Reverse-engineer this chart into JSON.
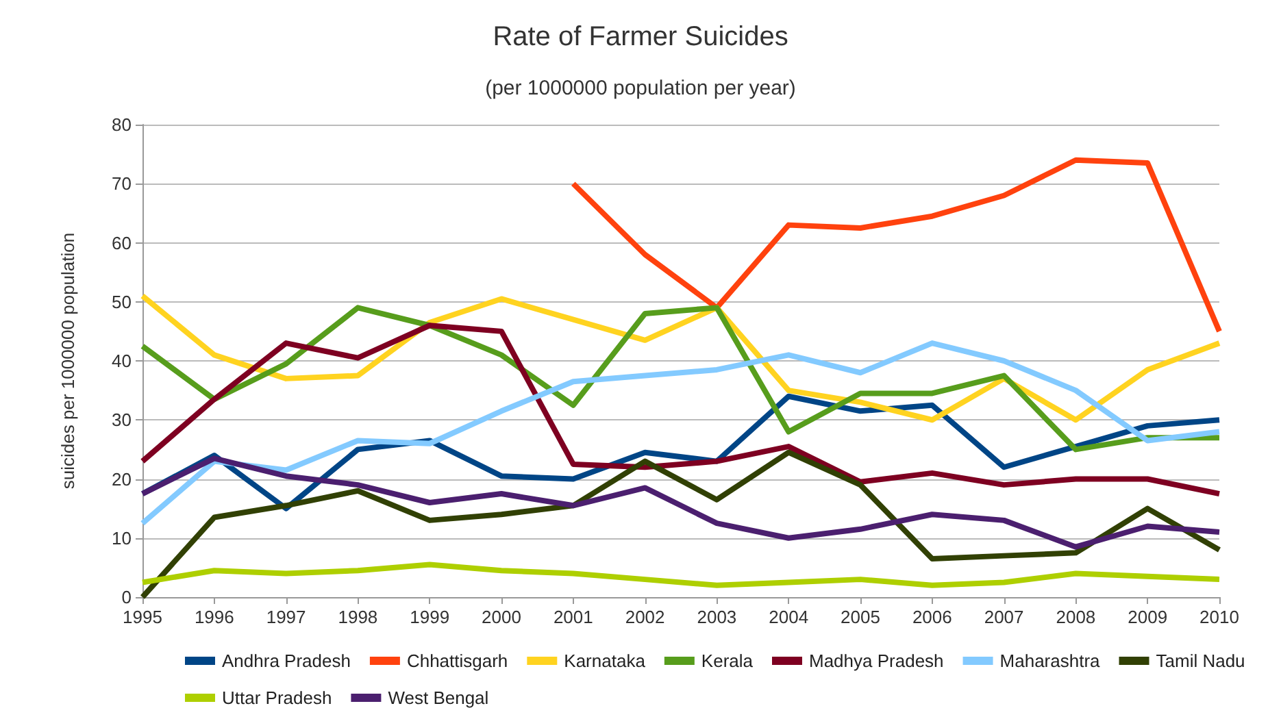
{
  "chart_data": {
    "type": "line",
    "title": "Rate of Farmer Suicides",
    "subtitle": "(per 1000000 population per year)",
    "ylabel": "suicides per 1000000 population",
    "categories": [
      "1995",
      "1996",
      "1997",
      "1998",
      "1999",
      "2000",
      "2001",
      "2002",
      "2003",
      "2004",
      "2005",
      "2006",
      "2007",
      "2008",
      "2009",
      "2010"
    ],
    "series": [
      {
        "name": "Andhra Pradesh",
        "color": "#004586",
        "values": [
          17.5,
          24,
          15,
          25,
          26.5,
          20.5,
          20,
          24.5,
          23,
          34,
          31.5,
          32.5,
          22,
          25.5,
          29,
          30
        ]
      },
      {
        "name": "Chhattisgarh",
        "color": "#ff420e",
        "values": [
          null,
          null,
          null,
          null,
          null,
          null,
          70,
          58,
          49,
          63,
          62.5,
          64.5,
          68,
          74,
          73.5,
          45
        ]
      },
      {
        "name": "Karnataka",
        "color": "#ffd320",
        "values": [
          51,
          41,
          37,
          37.5,
          46.5,
          50.5,
          47,
          43.5,
          49,
          35,
          33,
          30,
          37,
          30,
          38.5,
          43
        ]
      },
      {
        "name": "Kerala",
        "color": "#579d1c",
        "values": [
          42.5,
          33.5,
          39.5,
          49,
          46,
          41,
          32.5,
          48,
          49,
          28,
          34.5,
          34.5,
          37.5,
          25,
          27,
          27
        ]
      },
      {
        "name": "Madhya Pradesh",
        "color": "#7e0021",
        "values": [
          23,
          33.5,
          43,
          40.5,
          46,
          45,
          22.5,
          22,
          23,
          25.5,
          19.5,
          21,
          19,
          20,
          20,
          17.5
        ]
      },
      {
        "name": "Maharashtra",
        "color": "#83caff",
        "values": [
          12.5,
          23,
          21.5,
          26.5,
          26,
          31.5,
          36.5,
          37.5,
          38.5,
          41,
          38,
          43,
          40,
          35,
          26.5,
          28
        ]
      },
      {
        "name": "Tamil Nadu",
        "color": "#314004",
        "values": [
          0,
          13.5,
          15.5,
          18,
          13,
          14,
          15.5,
          23,
          16.5,
          24.5,
          19,
          6.5,
          7,
          7.5,
          15,
          8
        ]
      },
      {
        "name": "Uttar Pradesh",
        "color": "#aecf00",
        "values": [
          2.5,
          4.5,
          4,
          4.5,
          5.5,
          4.5,
          4,
          3,
          2,
          2.5,
          3,
          2,
          2.5,
          4,
          3.5,
          3
        ]
      },
      {
        "name": "West Bengal",
        "color": "#4b1f6f",
        "values": [
          17.5,
          23.5,
          20.5,
          19,
          16,
          17.5,
          15.5,
          18.5,
          12.5,
          10,
          11.5,
          14,
          13,
          8.5,
          12,
          11
        ]
      }
    ],
    "ylim": [
      0,
      80
    ],
    "yticks": [
      0,
      10,
      20,
      30,
      40,
      50,
      60,
      70,
      80
    ],
    "grid": "y",
    "legend": "bottom",
    "marker": "none",
    "line_style": "solid"
  }
}
